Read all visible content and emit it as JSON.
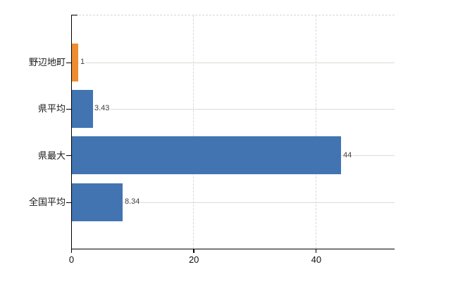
{
  "chart_data": {
    "type": "bar",
    "orientation": "horizontal",
    "title": "",
    "xlabel": "",
    "ylabel": "",
    "categories": [
      "野辺地町",
      "県平均",
      "県最大",
      "全国平均"
    ],
    "values": [
      1,
      3.43,
      44,
      8.34
    ],
    "value_labels": [
      "1",
      "3.43",
      "44",
      "8.34"
    ],
    "bar_colors": [
      "#ee8c32",
      "#4274b2",
      "#4274b2",
      "#4274b2"
    ],
    "xlim": [
      0,
      52.8
    ],
    "x_ticks": [
      0,
      20,
      40
    ],
    "x_tick_labels": [
      "0",
      "20",
      "40"
    ],
    "grid": true,
    "legend": false
  },
  "style": {
    "background": "#ffffff",
    "axis_color": "#000000",
    "category_line_color": "#d9ddd1",
    "dashed_grid_color": "#d8d8d8",
    "category_label_color": "#1a1a1a",
    "value_label_color": "#3d3d3d",
    "highlight_color": "#ee8c32",
    "base_color": "#4274b2"
  }
}
